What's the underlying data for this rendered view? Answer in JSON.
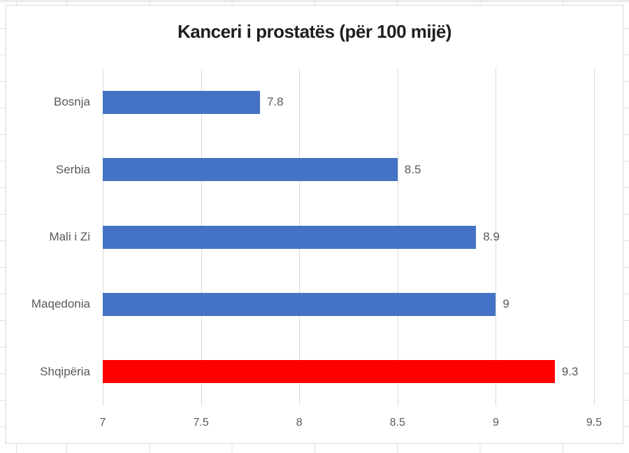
{
  "chart_data": {
    "type": "bar",
    "orientation": "horizontal",
    "title": "Kanceri i prostatës (për 100 mijë)",
    "categories": [
      "Bosnja",
      "Serbia",
      "Mali i Zi",
      "Maqedonia",
      "Shqipëria"
    ],
    "values": [
      7.8,
      8.5,
      8.9,
      9,
      9.3
    ],
    "value_labels": [
      "7.8",
      "8.5",
      "8.9",
      "9",
      "9.3"
    ],
    "bar_colors": [
      "#4472C4",
      "#4472C4",
      "#4472C4",
      "#4472C4",
      "#FF0000"
    ],
    "xlim": [
      7,
      9.5
    ],
    "x_ticks": [
      "7",
      "7.5",
      "8",
      "8.5",
      "9",
      "9.5"
    ],
    "x_tick_values": [
      7,
      7.5,
      8,
      8.5,
      9,
      9.5
    ],
    "grid": true,
    "legend": "none"
  },
  "colors": {
    "bar_blue": "#4472C4",
    "bar_red": "#FF0000",
    "axis_text": "#595959",
    "title_text": "#1F1F1F",
    "gridline": "#D9D9D9",
    "chart_border": "#D9D9D9",
    "sheet_gridline": "#E0E0E0"
  }
}
